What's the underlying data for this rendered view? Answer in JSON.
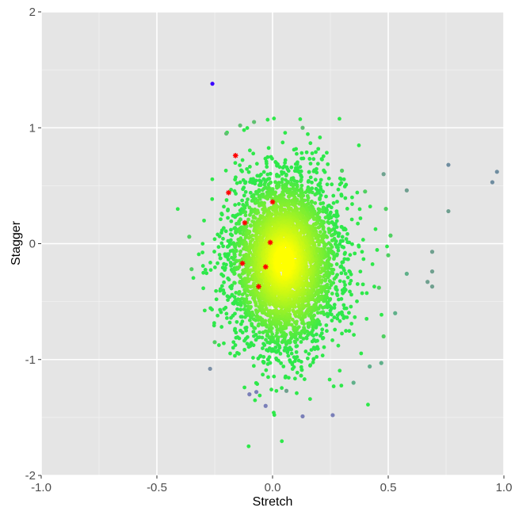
{
  "chart_data": {
    "type": "scatter",
    "title": "",
    "xlabel": "Stretch",
    "ylabel": "Stagger",
    "xlim": [
      -1.0,
      1.0
    ],
    "ylim": [
      -2,
      2
    ],
    "x_ticks": [
      -1.0,
      -0.5,
      0.0,
      0.5,
      1.0
    ],
    "x_tick_labels": [
      "-1.0",
      "-0.5",
      "0.0",
      "0.5",
      "1.0"
    ],
    "y_ticks": [
      -2,
      -1,
      0,
      1,
      2
    ],
    "y_tick_labels": [
      "-2",
      "-1",
      "0",
      "1",
      "2"
    ],
    "grid": true,
    "legend": "none",
    "background_color": "#e5e5e5",
    "grid_major_color": "#ffffff",
    "density_colors": {
      "low_density": "#2ee84a",
      "mid_density": "#8cf02c",
      "high_density": "#ffff00"
    },
    "outlier_color": "#7a8fa6",
    "series": [
      {
        "marker": "dot",
        "color_encoding": "point density (yellow = dense, green = sparse, grey/blue = isolated)",
        "points": [
          {
            "x": -0.26,
            "y": 1.38,
            "color": "#3a00ff"
          },
          {
            "x": 0.76,
            "y": 0.68,
            "color": "#6f8da0"
          },
          {
            "x": 0.97,
            "y": 0.62,
            "color": "#6f8da0"
          },
          {
            "x": 0.95,
            "y": 0.53,
            "color": "#6f8da0"
          },
          {
            "x": 0.58,
            "y": 0.46,
            "color": "#6f9f90"
          },
          {
            "x": 0.76,
            "y": 0.28,
            "color": "#6f9f90"
          },
          {
            "x": 0.48,
            "y": 0.6,
            "color": "#6fa390"
          },
          {
            "x": 0.69,
            "y": -0.07,
            "color": "#6fa08f"
          },
          {
            "x": 0.69,
            "y": -0.24,
            "color": "#6fa08f"
          },
          {
            "x": 0.69,
            "y": -0.37,
            "color": "#6fa08f"
          },
          {
            "x": 0.67,
            "y": -0.33,
            "color": "#6fa08f"
          },
          {
            "x": 0.58,
            "y": -0.26,
            "color": "#5fb08a"
          },
          {
            "x": 0.53,
            "y": -0.6,
            "color": "#5fb08a"
          },
          {
            "x": -0.27,
            "y": -1.08,
            "color": "#7a8fa6"
          },
          {
            "x": -0.1,
            "y": -1.3,
            "color": "#7a7fb8"
          },
          {
            "x": -0.07,
            "y": -1.28,
            "color": "#7a7fb8"
          },
          {
            "x": -0.03,
            "y": -1.4,
            "color": "#7a7fb8"
          },
          {
            "x": 0.13,
            "y": -1.49,
            "color": "#7a7fb8"
          },
          {
            "x": 0.26,
            "y": -1.48,
            "color": "#7a7fb8"
          },
          {
            "x": 0.06,
            "y": -1.27,
            "color": "#6fa08f"
          },
          {
            "x": 0.47,
            "y": -1.03,
            "color": "#5fb08a"
          },
          {
            "x": 0.42,
            "y": -1.06,
            "color": "#5fb08a"
          },
          {
            "x": 0.35,
            "y": -1.2,
            "color": "#5fb08a"
          },
          {
            "x": -0.14,
            "y": 1.02,
            "color": "#5fc070"
          },
          {
            "x": -0.08,
            "y": 1.05,
            "color": "#5fc070"
          },
          {
            "x": 0.13,
            "y": 1.0,
            "color": "#5fc070"
          },
          {
            "x": -0.2,
            "y": 0.95,
            "color": "#5fc070"
          },
          {
            "x": 0.49,
            "y": 0.3,
            "color": "#4fd060"
          },
          {
            "x": 0.51,
            "y": 0.07,
            "color": "#4fd060"
          },
          {
            "x": 0.5,
            "y": -0.1,
            "color": "#4fd060"
          },
          {
            "x": 0.48,
            "y": -0.8,
            "color": "#4fd060"
          },
          {
            "x": 0.46,
            "y": -0.38,
            "color": "#4fd060"
          },
          {
            "x": -0.36,
            "y": 0.06,
            "color": "#4fd060"
          },
          {
            "x": -0.35,
            "y": -0.22,
            "color": "#4fd060"
          },
          {
            "x": -0.25,
            "y": -0.85,
            "color": "#4fd060"
          },
          {
            "x": 0.3,
            "y": 0.63,
            "color": "#4fd060"
          },
          {
            "x": 0.4,
            "y": 0.45,
            "color": "#4fd060"
          }
        ]
      },
      {
        "marker": "asterisk",
        "color": "#ff0000",
        "points": [
          {
            "x": -0.16,
            "y": 0.76
          },
          {
            "x": -0.19,
            "y": 0.44
          },
          {
            "x": 0.0,
            "y": 0.36
          },
          {
            "x": -0.12,
            "y": 0.18
          },
          {
            "x": -0.01,
            "y": 0.01
          },
          {
            "x": -0.13,
            "y": -0.17
          },
          {
            "x": -0.03,
            "y": -0.2
          },
          {
            "x": -0.06,
            "y": -0.37
          }
        ]
      }
    ],
    "density_cloud": {
      "center_x": 0.05,
      "center_y": -0.15,
      "sd_x": 0.12,
      "sd_y": 0.38,
      "approx_point_count": 4000
    }
  }
}
